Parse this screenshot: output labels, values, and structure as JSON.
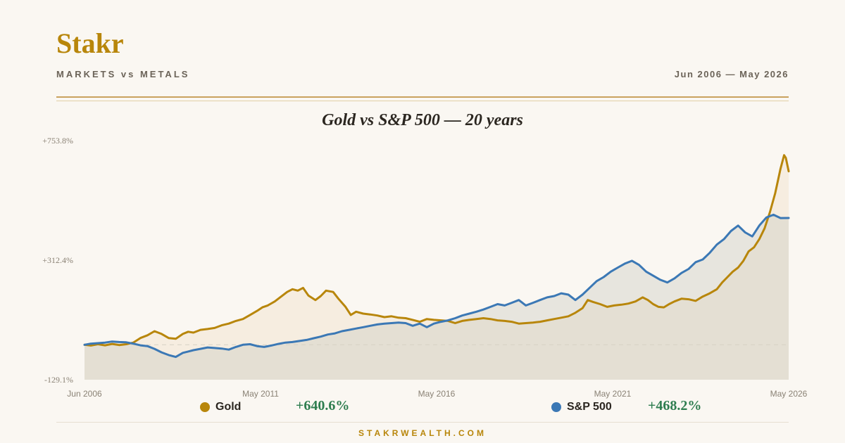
{
  "brand": "Stakr",
  "subtitle": "MARKETS vs METALS",
  "date_range": "Jun 2006 — May 2026",
  "footer": "STAKRWEALTH.COM",
  "legend": [
    {
      "name": "Gold",
      "return": "+640.6%",
      "color": "#b8860b"
    },
    {
      "name": "S&P 500",
      "return": "+468.2%",
      "color": "#3b78b5"
    }
  ],
  "chart_data": {
    "type": "line",
    "title": "Gold vs S&P 500 — 20 years",
    "xlabel": "",
    "ylabel": "",
    "x_ticks": [
      "Jun 2006",
      "May 2011",
      "May 2016",
      "May 2021",
      "May 2026"
    ],
    "y_ticks": [
      "+753.8%",
      "+312.4%",
      "-129.1%"
    ],
    "ylim": [
      -129.1,
      753.8
    ],
    "baseline": 0,
    "grid": false,
    "x_range": [
      2006.42,
      2026.33
    ],
    "series": [
      {
        "name": "Gold",
        "color": "#b8860b",
        "area": true,
        "points": [
          [
            2006.42,
            0
          ],
          [
            2006.6,
            -3
          ],
          [
            2006.8,
            2
          ],
          [
            2007.0,
            -2
          ],
          [
            2007.2,
            3
          ],
          [
            2007.4,
            -1
          ],
          [
            2007.6,
            2
          ],
          [
            2007.8,
            8
          ],
          [
            2008.0,
            25
          ],
          [
            2008.2,
            35
          ],
          [
            2008.4,
            50
          ],
          [
            2008.6,
            40
          ],
          [
            2008.8,
            25
          ],
          [
            2009.0,
            22
          ],
          [
            2009.2,
            40
          ],
          [
            2009.35,
            48
          ],
          [
            2009.5,
            45
          ],
          [
            2009.7,
            55
          ],
          [
            2009.9,
            58
          ],
          [
            2010.1,
            62
          ],
          [
            2010.3,
            72
          ],
          [
            2010.5,
            78
          ],
          [
            2010.7,
            88
          ],
          [
            2010.9,
            95
          ],
          [
            2011.1,
            110
          ],
          [
            2011.3,
            125
          ],
          [
            2011.45,
            138
          ],
          [
            2011.6,
            145
          ],
          [
            2011.8,
            160
          ],
          [
            2011.95,
            175
          ],
          [
            2012.15,
            195
          ],
          [
            2012.3,
            205
          ],
          [
            2012.45,
            200
          ],
          [
            2012.6,
            210
          ],
          [
            2012.75,
            182
          ],
          [
            2012.95,
            165
          ],
          [
            2013.1,
            180
          ],
          [
            2013.25,
            200
          ],
          [
            2013.45,
            195
          ],
          [
            2013.6,
            170
          ],
          [
            2013.8,
            140
          ],
          [
            2013.95,
            110
          ],
          [
            2014.1,
            122
          ],
          [
            2014.3,
            115
          ],
          [
            2014.5,
            112
          ],
          [
            2014.7,
            108
          ],
          [
            2014.9,
            102
          ],
          [
            2015.1,
            105
          ],
          [
            2015.3,
            100
          ],
          [
            2015.5,
            98
          ],
          [
            2015.7,
            92
          ],
          [
            2015.9,
            85
          ],
          [
            2016.1,
            95
          ],
          [
            2016.3,
            92
          ],
          [
            2016.5,
            90
          ],
          [
            2016.7,
            88
          ],
          [
            2016.9,
            80
          ],
          [
            2017.1,
            88
          ],
          [
            2017.3,
            92
          ],
          [
            2017.5,
            95
          ],
          [
            2017.7,
            98
          ],
          [
            2017.9,
            95
          ],
          [
            2018.1,
            90
          ],
          [
            2018.3,
            88
          ],
          [
            2018.5,
            85
          ],
          [
            2018.7,
            78
          ],
          [
            2018.9,
            80
          ],
          [
            2019.1,
            82
          ],
          [
            2019.3,
            85
          ],
          [
            2019.5,
            90
          ],
          [
            2019.7,
            95
          ],
          [
            2019.9,
            100
          ],
          [
            2020.1,
            105
          ],
          [
            2020.3,
            118
          ],
          [
            2020.5,
            135
          ],
          [
            2020.65,
            165
          ],
          [
            2020.8,
            158
          ],
          [
            2021.0,
            150
          ],
          [
            2021.2,
            140
          ],
          [
            2021.4,
            145
          ],
          [
            2021.6,
            148
          ],
          [
            2021.8,
            152
          ],
          [
            2022.0,
            160
          ],
          [
            2022.2,
            175
          ],
          [
            2022.35,
            165
          ],
          [
            2022.5,
            150
          ],
          [
            2022.65,
            140
          ],
          [
            2022.8,
            138
          ],
          [
            2022.95,
            150
          ],
          [
            2023.1,
            160
          ],
          [
            2023.3,
            170
          ],
          [
            2023.5,
            168
          ],
          [
            2023.7,
            162
          ],
          [
            2023.9,
            178
          ],
          [
            2024.1,
            190
          ],
          [
            2024.3,
            205
          ],
          [
            2024.45,
            230
          ],
          [
            2024.6,
            250
          ],
          [
            2024.75,
            270
          ],
          [
            2024.9,
            285
          ],
          [
            2025.05,
            310
          ],
          [
            2025.2,
            345
          ],
          [
            2025.35,
            360
          ],
          [
            2025.5,
            390
          ],
          [
            2025.65,
            430
          ],
          [
            2025.8,
            490
          ],
          [
            2025.95,
            560
          ],
          [
            2026.1,
            650
          ],
          [
            2026.2,
            700
          ],
          [
            2026.25,
            690
          ],
          [
            2026.33,
            640.6
          ]
        ]
      },
      {
        "name": "S&P 500",
        "color": "#3b78b5",
        "area": true,
        "points": [
          [
            2006.42,
            0
          ],
          [
            2006.6,
            4
          ],
          [
            2006.8,
            6
          ],
          [
            2007.0,
            8
          ],
          [
            2007.2,
            12
          ],
          [
            2007.4,
            10
          ],
          [
            2007.6,
            9
          ],
          [
            2007.8,
            4
          ],
          [
            2008.0,
            -2
          ],
          [
            2008.2,
            -5
          ],
          [
            2008.4,
            -15
          ],
          [
            2008.6,
            -28
          ],
          [
            2008.8,
            -38
          ],
          [
            2009.0,
            -45
          ],
          [
            2009.2,
            -30
          ],
          [
            2009.35,
            -25
          ],
          [
            2009.5,
            -20
          ],
          [
            2009.7,
            -15
          ],
          [
            2009.9,
            -10
          ],
          [
            2010.1,
            -12
          ],
          [
            2010.3,
            -14
          ],
          [
            2010.5,
            -18
          ],
          [
            2010.7,
            -8
          ],
          [
            2010.9,
            0
          ],
          [
            2011.1,
            2
          ],
          [
            2011.3,
            -5
          ],
          [
            2011.5,
            -8
          ],
          [
            2011.7,
            -3
          ],
          [
            2011.9,
            3
          ],
          [
            2012.1,
            8
          ],
          [
            2012.3,
            10
          ],
          [
            2012.5,
            14
          ],
          [
            2012.7,
            18
          ],
          [
            2012.9,
            24
          ],
          [
            2013.1,
            30
          ],
          [
            2013.3,
            38
          ],
          [
            2013.5,
            42
          ],
          [
            2013.7,
            50
          ],
          [
            2013.9,
            55
          ],
          [
            2014.1,
            60
          ],
          [
            2014.3,
            65
          ],
          [
            2014.5,
            70
          ],
          [
            2014.7,
            75
          ],
          [
            2014.9,
            78
          ],
          [
            2015.1,
            80
          ],
          [
            2015.3,
            82
          ],
          [
            2015.5,
            80
          ],
          [
            2015.7,
            70
          ],
          [
            2015.9,
            78
          ],
          [
            2016.1,
            65
          ],
          [
            2016.3,
            78
          ],
          [
            2016.5,
            85
          ],
          [
            2016.7,
            90
          ],
          [
            2016.9,
            98
          ],
          [
            2017.1,
            108
          ],
          [
            2017.3,
            115
          ],
          [
            2017.5,
            122
          ],
          [
            2017.7,
            130
          ],
          [
            2017.9,
            140
          ],
          [
            2018.1,
            150
          ],
          [
            2018.3,
            145
          ],
          [
            2018.5,
            155
          ],
          [
            2018.7,
            165
          ],
          [
            2018.9,
            145
          ],
          [
            2019.1,
            155
          ],
          [
            2019.3,
            165
          ],
          [
            2019.5,
            175
          ],
          [
            2019.7,
            180
          ],
          [
            2019.9,
            190
          ],
          [
            2020.1,
            185
          ],
          [
            2020.3,
            165
          ],
          [
            2020.5,
            185
          ],
          [
            2020.7,
            210
          ],
          [
            2020.9,
            235
          ],
          [
            2021.1,
            250
          ],
          [
            2021.3,
            270
          ],
          [
            2021.5,
            285
          ],
          [
            2021.7,
            300
          ],
          [
            2021.9,
            310
          ],
          [
            2022.1,
            295
          ],
          [
            2022.3,
            270
          ],
          [
            2022.5,
            255
          ],
          [
            2022.7,
            240
          ],
          [
            2022.9,
            230
          ],
          [
            2023.1,
            245
          ],
          [
            2023.3,
            265
          ],
          [
            2023.5,
            280
          ],
          [
            2023.7,
            305
          ],
          [
            2023.9,
            315
          ],
          [
            2024.1,
            340
          ],
          [
            2024.3,
            370
          ],
          [
            2024.5,
            390
          ],
          [
            2024.7,
            420
          ],
          [
            2024.9,
            440
          ],
          [
            2025.1,
            415
          ],
          [
            2025.3,
            400
          ],
          [
            2025.5,
            440
          ],
          [
            2025.7,
            470
          ],
          [
            2025.9,
            480
          ],
          [
            2026.1,
            468
          ],
          [
            2026.33,
            468.2
          ]
        ]
      }
    ]
  }
}
